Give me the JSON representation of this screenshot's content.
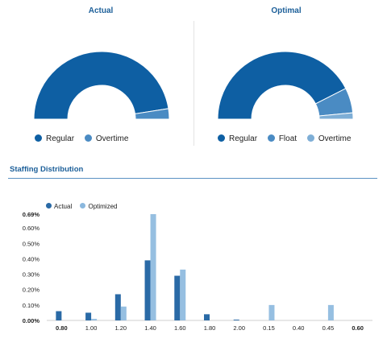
{
  "panels": [
    {
      "title": "Actual",
      "segments": [
        {
          "label": "Regular",
          "fraction": 0.95,
          "color": "#0e5fa3"
        },
        {
          "label": "Overtime",
          "fraction": 0.05,
          "color": "#4a8bc3"
        }
      ]
    },
    {
      "title": "Optimal",
      "segments": [
        {
          "label": "Regular",
          "fraction": 0.85,
          "color": "#0e5fa3"
        },
        {
          "label": "Float",
          "fraction": 0.12,
          "color": "#4a8bc3"
        },
        {
          "label": "Overtime",
          "fraction": 0.03,
          "color": "#7eaed6"
        }
      ]
    }
  ],
  "distribution": {
    "section_title": "Staffing Distribution",
    "colors": {
      "actual": "#2a6aa6",
      "optimized": "#8bb8de"
    }
  },
  "chart_data": {
    "type": "bar",
    "title": "",
    "categories": [
      "0.80",
      "1.00",
      "1.20",
      "1.40",
      "1.60",
      "1.80",
      "2.00",
      "0.15",
      "0.40",
      "0.45",
      "0.60"
    ],
    "bold_categories": [
      "0.80",
      "0.60"
    ],
    "series": [
      {
        "name": "Actual",
        "values": [
          0.06,
          0.05,
          0.17,
          0.39,
          0.29,
          0.04,
          0.005,
          0.0,
          0.0,
          0.0,
          0.0
        ]
      },
      {
        "name": "Optimized",
        "values": [
          0.0,
          0.01,
          0.09,
          0.69,
          0.33,
          0.0,
          0.0,
          0.1,
          0.0,
          0.1,
          0.0
        ]
      }
    ],
    "y_ticks": [
      "0.00%",
      "0.10%",
      "0.20%",
      "0.30%",
      "0.40%",
      "0.50%",
      "0.60%",
      "0.69%"
    ],
    "ylim": [
      0,
      0.69
    ],
    "legend_position": "top-left",
    "grid": false
  }
}
